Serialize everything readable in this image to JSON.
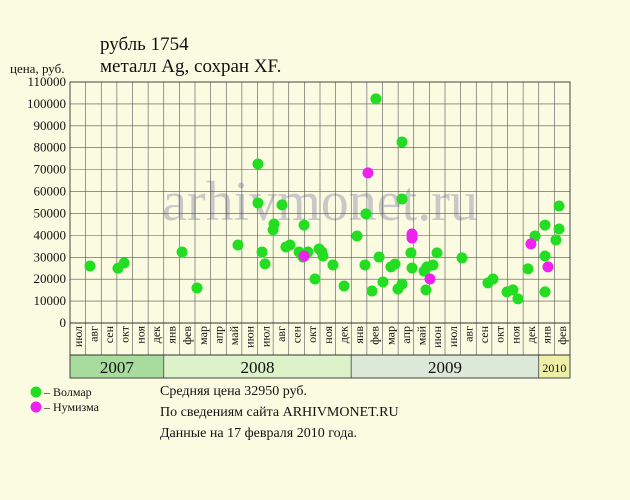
{
  "chart_data": {
    "type": "scatter",
    "title": [
      "рубль 1754",
      "металл Ag, сохран XF."
    ],
    "y_label": "цена, руб.",
    "watermark": "arhivmonet.ru",
    "ylim": [
      0,
      110000
    ],
    "yticks": [
      0,
      10000,
      20000,
      30000,
      40000,
      50000,
      60000,
      70000,
      80000,
      90000,
      100000,
      110000
    ],
    "grid": true,
    "x_groups": [
      {
        "label": "2007",
        "color": "#a8dc9c",
        "categories": [
          "июл",
          "авг",
          "сен",
          "окт",
          "ноя",
          "дек"
        ]
      },
      {
        "label": "2008",
        "color": "#dcf2c8",
        "categories": [
          "янв",
          "фев",
          "мар",
          "апр",
          "май",
          "июн",
          "июл",
          "авг",
          "сен",
          "окт",
          "ноя",
          "дек"
        ]
      },
      {
        "label": "2009",
        "color": "#dce8d8",
        "categories": [
          "янв",
          "фев",
          "мар",
          "апр",
          "май",
          "июн",
          "июл",
          "авг",
          "сен",
          "окт",
          "ноя",
          "дек"
        ]
      },
      {
        "label": "2010",
        "color": "#eef0a8",
        "categories": [
          "янв",
          "фев"
        ]
      }
    ],
    "series": [
      {
        "name": "– Волмар",
        "color": "#22dd22",
        "x": [
          1.28,
          3.07,
          3.46,
          7.17,
          8.13,
          10.75,
          12.03,
          12.03,
          12.29,
          12.48,
          13.0,
          13.06,
          13.57,
          13.82,
          14.08,
          14.66,
          14.91,
          14.98,
          15.23,
          15.68,
          15.94,
          16.13,
          16.19,
          16.83,
          17.54,
          18.37,
          18.88,
          18.94,
          19.33,
          19.58,
          19.78,
          20.03,
          20.54,
          20.8,
          20.99,
          21.25,
          21.25,
          21.25,
          21.82,
          21.89,
          22.66,
          22.78,
          22.85,
          23.23,
          23.49,
          25.09,
          26.75,
          27.07,
          27.97,
          28.35,
          28.67,
          29.31,
          29.76,
          30.4,
          30.4,
          30.4,
          31.1,
          31.3,
          31.3
        ],
        "values": [
          26000,
          25000,
          27400,
          32400,
          16000,
          35600,
          72600,
          54800,
          32400,
          27000,
          42500,
          45200,
          53900,
          34700,
          35600,
          32400,
          30100,
          44700,
          32400,
          20100,
          33800,
          32400,
          30600,
          26500,
          16900,
          39700,
          26500,
          49800,
          14600,
          102300,
          30100,
          18700,
          25600,
          26900,
          15500,
          17800,
          82600,
          56600,
          32000,
          25100,
          23700,
          15100,
          25600,
          26500,
          32000,
          29700,
          18300,
          20100,
          14200,
          15100,
          11000,
          24700,
          39700,
          44700,
          30600,
          14200,
          37900,
          53400,
          42900
        ]
      },
      {
        "name": "– Нумизма",
        "color": "#ee22ee",
        "x": [
          14.98,
          19.07,
          21.89,
          21.89,
          23.04,
          29.5,
          30.59
        ],
        "values": [
          30600,
          68500,
          40600,
          38800,
          20100,
          36100,
          25600
        ]
      }
    ],
    "notes": [
      "Средняя цена 32950 руб.",
      "По сведениям сайта ARHIVMONET.RU",
      "Данные на 17 февраля 2010 года."
    ]
  }
}
